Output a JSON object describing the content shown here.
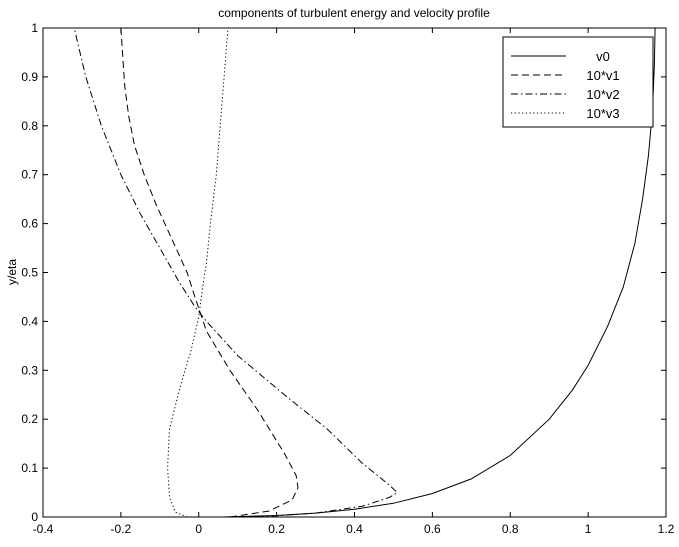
{
  "chart_data": {
    "type": "line",
    "title": "components of turbulent energy and velocity profile",
    "xlabel": "",
    "ylabel": "y/eta",
    "xlim": [
      -0.4,
      1.2
    ],
    "ylim": [
      0,
      1
    ],
    "xticks": [
      -0.4,
      -0.2,
      0,
      0.2,
      0.4,
      0.6,
      0.8,
      1,
      1.2
    ],
    "yticks": [
      0,
      0.1,
      0.2,
      0.3,
      0.4,
      0.5,
      0.6,
      0.7,
      0.8,
      0.9,
      1
    ],
    "xtick_labels": [
      "-0.4",
      "-0.2",
      "0",
      "0.2",
      "0.4",
      "0.6",
      "0.8",
      "1",
      "1.2"
    ],
    "ytick_labels": [
      "0",
      "0.1",
      "0.2",
      "0.3",
      "0.4",
      "0.5",
      "0.6",
      "0.7",
      "0.8",
      "0.9",
      "1"
    ],
    "grid": false,
    "legend_position": "top-right",
    "series": [
      {
        "name": "v0",
        "style": "solid",
        "points": [
          [
            0.06,
            0
          ],
          [
            0.2,
            0.003
          ],
          [
            0.3,
            0.008
          ],
          [
            0.4,
            0.016
          ],
          [
            0.5,
            0.028
          ],
          [
            0.6,
            0.048
          ],
          [
            0.7,
            0.078
          ],
          [
            0.8,
            0.126
          ],
          [
            0.9,
            0.2
          ],
          [
            0.96,
            0.26
          ],
          [
            1.0,
            0.31
          ],
          [
            1.05,
            0.39
          ],
          [
            1.09,
            0.47
          ],
          [
            1.12,
            0.56
          ],
          [
            1.14,
            0.65
          ],
          [
            1.155,
            0.74
          ],
          [
            1.165,
            0.83
          ],
          [
            1.17,
            0.92
          ],
          [
            1.172,
            1.0
          ]
        ]
      },
      {
        "name": "10*v1",
        "style": "dashed",
        "points": [
          [
            0.08,
            0
          ],
          [
            0.18,
            0.012
          ],
          [
            0.24,
            0.035
          ],
          [
            0.255,
            0.06
          ],
          [
            0.25,
            0.085
          ],
          [
            0.22,
            0.13
          ],
          [
            0.15,
            0.22
          ],
          [
            0.08,
            0.3
          ],
          [
            0.02,
            0.38
          ],
          [
            -0.01,
            0.45
          ],
          [
            -0.03,
            0.5
          ],
          [
            -0.07,
            0.57
          ],
          [
            -0.11,
            0.64
          ],
          [
            -0.14,
            0.7
          ],
          [
            -0.165,
            0.76
          ],
          [
            -0.18,
            0.82
          ],
          [
            -0.19,
            0.88
          ],
          [
            -0.195,
            0.94
          ],
          [
            -0.2,
            1.0
          ]
        ]
      },
      {
        "name": "10*v2",
        "style": "dashdot",
        "points": [
          [
            0.15,
            0
          ],
          [
            0.3,
            0.008
          ],
          [
            0.42,
            0.022
          ],
          [
            0.49,
            0.04
          ],
          [
            0.51,
            0.05
          ],
          [
            0.49,
            0.065
          ],
          [
            0.42,
            0.11
          ],
          [
            0.33,
            0.18
          ],
          [
            0.22,
            0.25
          ],
          [
            0.1,
            0.33
          ],
          [
            0.02,
            0.4
          ],
          [
            -0.01,
            0.43
          ],
          [
            -0.05,
            0.48
          ],
          [
            -0.1,
            0.55
          ],
          [
            -0.15,
            0.62
          ],
          [
            -0.2,
            0.7
          ],
          [
            -0.25,
            0.8
          ],
          [
            -0.29,
            0.9
          ],
          [
            -0.32,
            1.0
          ]
        ]
      },
      {
        "name": "10*v3",
        "style": "dotted",
        "points": [
          [
            -0.03,
            0
          ],
          [
            -0.06,
            0.01
          ],
          [
            -0.075,
            0.04
          ],
          [
            -0.08,
            0.1
          ],
          [
            -0.075,
            0.18
          ],
          [
            -0.05,
            0.26
          ],
          [
            -0.02,
            0.34
          ],
          [
            0.0,
            0.41
          ],
          [
            0.01,
            0.47
          ],
          [
            0.02,
            0.52
          ],
          [
            0.03,
            0.6
          ],
          [
            0.045,
            0.7
          ],
          [
            0.055,
            0.8
          ],
          [
            0.065,
            0.9
          ],
          [
            0.075,
            1.0
          ]
        ]
      }
    ]
  }
}
